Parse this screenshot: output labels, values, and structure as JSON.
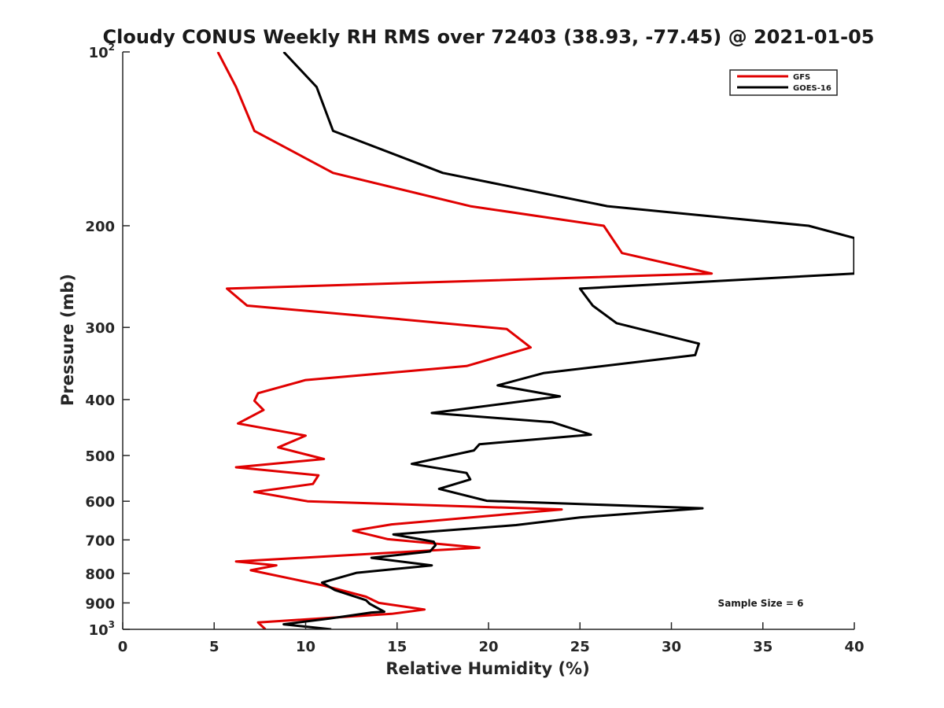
{
  "chart_data": {
    "type": "line",
    "title": "Cloudy CONUS Weekly RH RMS over 72403 (38.93, -77.45) @ 2021-01-05",
    "xlabel": "Relative Humidity (%)",
    "ylabel": "Pressure (mb)",
    "xlim": [
      0,
      40
    ],
    "ylim": [
      100,
      1000
    ],
    "yscale": "log",
    "y_reversed": true,
    "grid": false,
    "legend_position": "top-right",
    "x_ticks": [
      "0",
      "5",
      "10",
      "15",
      "20",
      "25",
      "30",
      "35",
      "40"
    ],
    "y_ticks": [
      {
        "value": 100,
        "base": "10",
        "exp": "2"
      },
      {
        "value": 200,
        "label": "200"
      },
      {
        "value": 300,
        "label": "300"
      },
      {
        "value": 400,
        "label": "400"
      },
      {
        "value": 500,
        "label": "500"
      },
      {
        "value": 600,
        "label": "600"
      },
      {
        "value": 700,
        "label": "700"
      },
      {
        "value": 800,
        "label": "800"
      },
      {
        "value": 900,
        "label": "900"
      },
      {
        "value": 1000,
        "base": "10",
        "exp": "3"
      }
    ],
    "series": [
      {
        "name": "GFS",
        "color": "#e00000",
        "points": [
          [
            5.2,
            100
          ],
          [
            6.2,
            115
          ],
          [
            7.2,
            137
          ],
          [
            11.5,
            162
          ],
          [
            19,
            185
          ],
          [
            26.3,
            200
          ],
          [
            27.3,
            223
          ],
          [
            32.2,
            242
          ],
          [
            5.7,
            257
          ],
          [
            6.8,
            275
          ],
          [
            15,
            290
          ],
          [
            21,
            302
          ],
          [
            22.3,
            325
          ],
          [
            18.8,
            350
          ],
          [
            10,
            370
          ],
          [
            7.4,
            390
          ],
          [
            7.2,
            402
          ],
          [
            7.7,
            417
          ],
          [
            6.3,
            440
          ],
          [
            10,
            462
          ],
          [
            8.5,
            484
          ],
          [
            11,
            507
          ],
          [
            6.2,
            524
          ],
          [
            10.7,
            541
          ],
          [
            10.4,
            560
          ],
          [
            7.2,
            578
          ],
          [
            10.1,
            600
          ],
          [
            24,
            620
          ],
          [
            14.7,
            658
          ],
          [
            12.6,
            675
          ],
          [
            14.5,
            698
          ],
          [
            19.5,
            722
          ],
          [
            6.2,
            763
          ],
          [
            8.4,
            775
          ],
          [
            7,
            790
          ],
          [
            11,
            840
          ],
          [
            13.3,
            878
          ],
          [
            14,
            900
          ],
          [
            16.5,
            924
          ],
          [
            14.7,
            940
          ],
          [
            7.4,
            973
          ],
          [
            7.8,
            1000
          ]
        ]
      },
      {
        "name": "GOES-16",
        "color": "#000000",
        "points": [
          [
            8.8,
            100
          ],
          [
            10.6,
            115
          ],
          [
            11.5,
            137
          ],
          [
            17.5,
            162
          ],
          [
            26.5,
            185
          ],
          [
            37.5,
            200
          ],
          [
            40,
            210
          ],
          [
            40,
            242
          ],
          [
            25,
            257
          ],
          [
            25.7,
            275
          ],
          [
            27,
            295
          ],
          [
            31.5,
            320
          ],
          [
            31.3,
            335
          ],
          [
            23,
            360
          ],
          [
            20.5,
            378
          ],
          [
            23.9,
            395
          ],
          [
            16.9,
            422
          ],
          [
            23.5,
            438
          ],
          [
            25.6,
            460
          ],
          [
            19.5,
            478
          ],
          [
            19.2,
            490
          ],
          [
            15.8,
            517
          ],
          [
            18.8,
            536
          ],
          [
            19,
            550
          ],
          [
            17.3,
            571
          ],
          [
            19.9,
            599
          ],
          [
            31.7,
            617
          ],
          [
            25,
            640
          ],
          [
            21.5,
            660
          ],
          [
            14.8,
            685
          ],
          [
            17,
            705
          ],
          [
            17.1,
            715
          ],
          [
            16.8,
            733
          ],
          [
            13.6,
            752
          ],
          [
            16.9,
            775
          ],
          [
            12.8,
            798
          ],
          [
            10.9,
            830
          ],
          [
            11.6,
            855
          ],
          [
            13.3,
            890
          ],
          [
            13.5,
            903
          ],
          [
            14.1,
            925
          ],
          [
            14.3,
            932
          ],
          [
            13.6,
            935
          ],
          [
            11.3,
            958
          ],
          [
            8.8,
            980
          ],
          [
            11.4,
            1000
          ]
        ]
      }
    ],
    "annotation": "Sample Size = 6"
  }
}
